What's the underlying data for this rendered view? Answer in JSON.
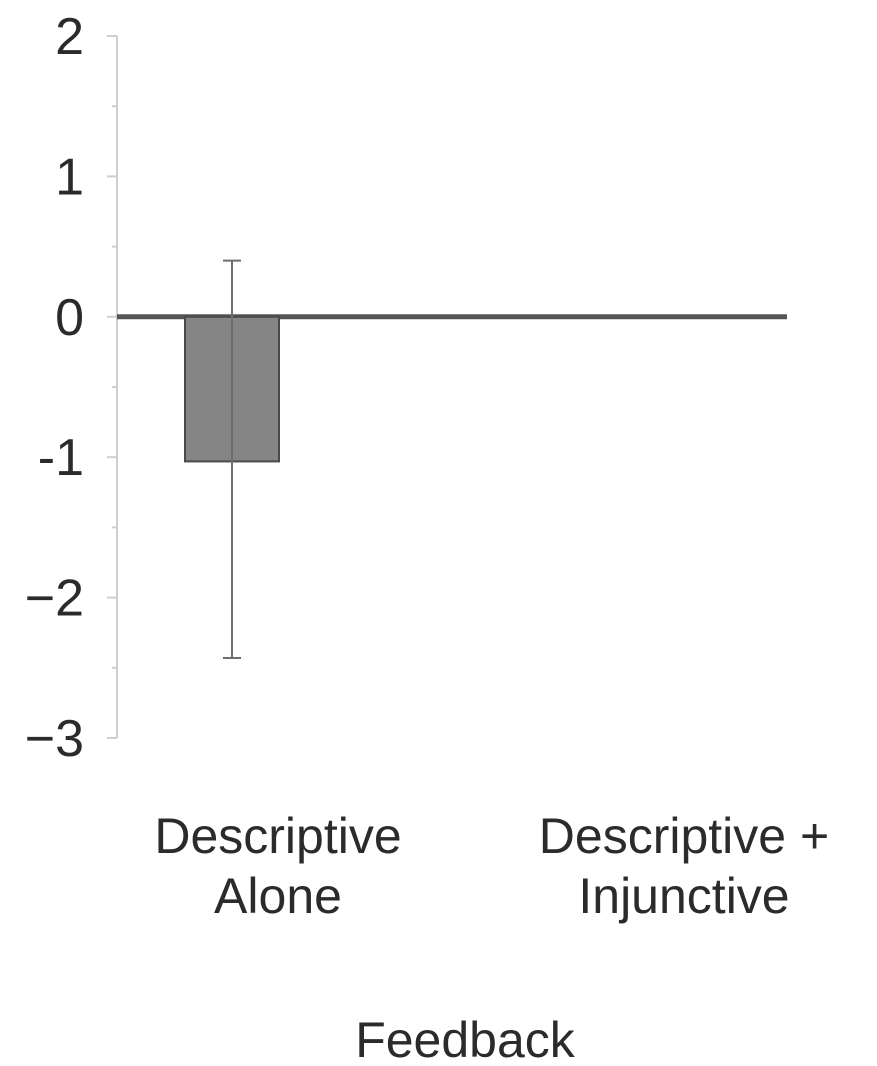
{
  "chart_data": {
    "type": "bar",
    "title": "",
    "xlabel": "Feedback",
    "ylabel": "",
    "ylim": [
      -3,
      2
    ],
    "yticks": [
      {
        "value": 2,
        "label": "2"
      },
      {
        "value": 1,
        "label": "1"
      },
      {
        "value": 0,
        "label": "0"
      },
      {
        "value": -1,
        "label": "-1"
      },
      {
        "value": -2,
        "label": "−2"
      },
      {
        "value": -3,
        "label": "−3"
      }
    ],
    "categories": [
      {
        "label_lines": [
          "Descriptive",
          "Alone"
        ]
      },
      {
        "label_lines": [
          "Descriptive +",
          "Injunctive"
        ]
      }
    ],
    "values": [
      -1.03,
      0
    ],
    "error_bars": [
      {
        "low": -2.43,
        "high": 0.4
      },
      null
    ],
    "legend": "none",
    "grid": false,
    "colors": {
      "bar": "#858585",
      "bar_edge": "#4a4a4a",
      "zero_line": "#555555",
      "axis": "#cfcfcf",
      "error_bar": "#6e6e6e",
      "text": "#2b2b2b"
    }
  }
}
